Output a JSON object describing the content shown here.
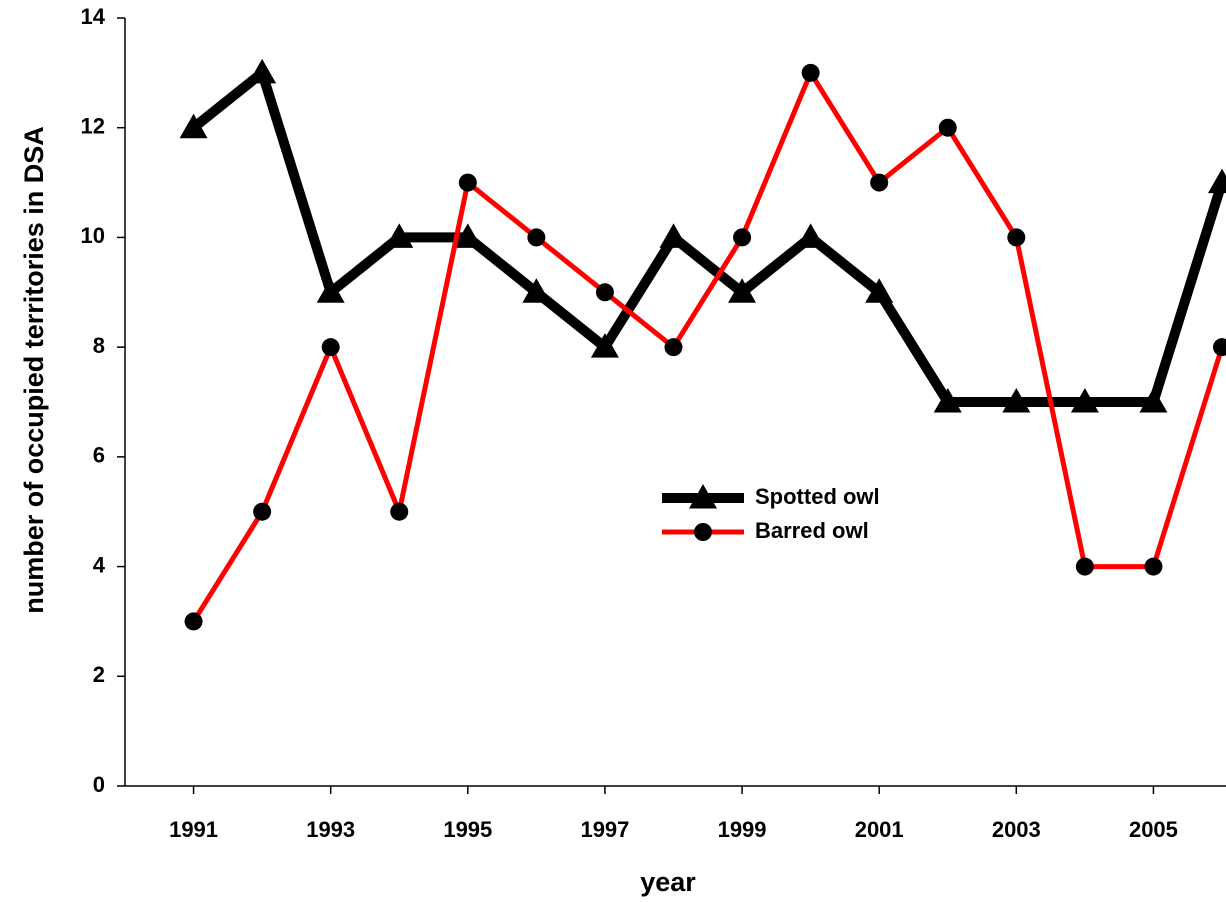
{
  "chart_data": {
    "type": "line",
    "x_label": "year",
    "y_label": "number of occupied territories in DSA",
    "x": [
      1991,
      1992,
      1993,
      1994,
      1995,
      1996,
      1997,
      1998,
      1999,
      2000,
      2001,
      2002,
      2003,
      2004,
      2005,
      2006
    ],
    "series": [
      {
        "name": "Spotted owl",
        "color": "#000000",
        "marker": "triangle",
        "values": [
          12,
          13,
          9,
          10,
          10,
          9,
          8,
          10,
          9,
          10,
          9,
          7,
          7,
          7,
          7,
          11
        ]
      },
      {
        "name": "Barred owl",
        "color": "#ff0000",
        "marker": "circle",
        "values": [
          3,
          5,
          8,
          5,
          11,
          10,
          9,
          8,
          10,
          13,
          11,
          12,
          10,
          4,
          4,
          8
        ]
      }
    ],
    "xlim": [
      1990,
      2006
    ],
    "xticks": [
      1991,
      1993,
      1995,
      1997,
      1999,
      2001,
      2003,
      2005
    ],
    "ylim": [
      0,
      14
    ],
    "yticks": [
      0,
      2,
      4,
      6,
      8,
      10,
      12,
      14
    ],
    "grid": false,
    "legend_position": "center"
  }
}
